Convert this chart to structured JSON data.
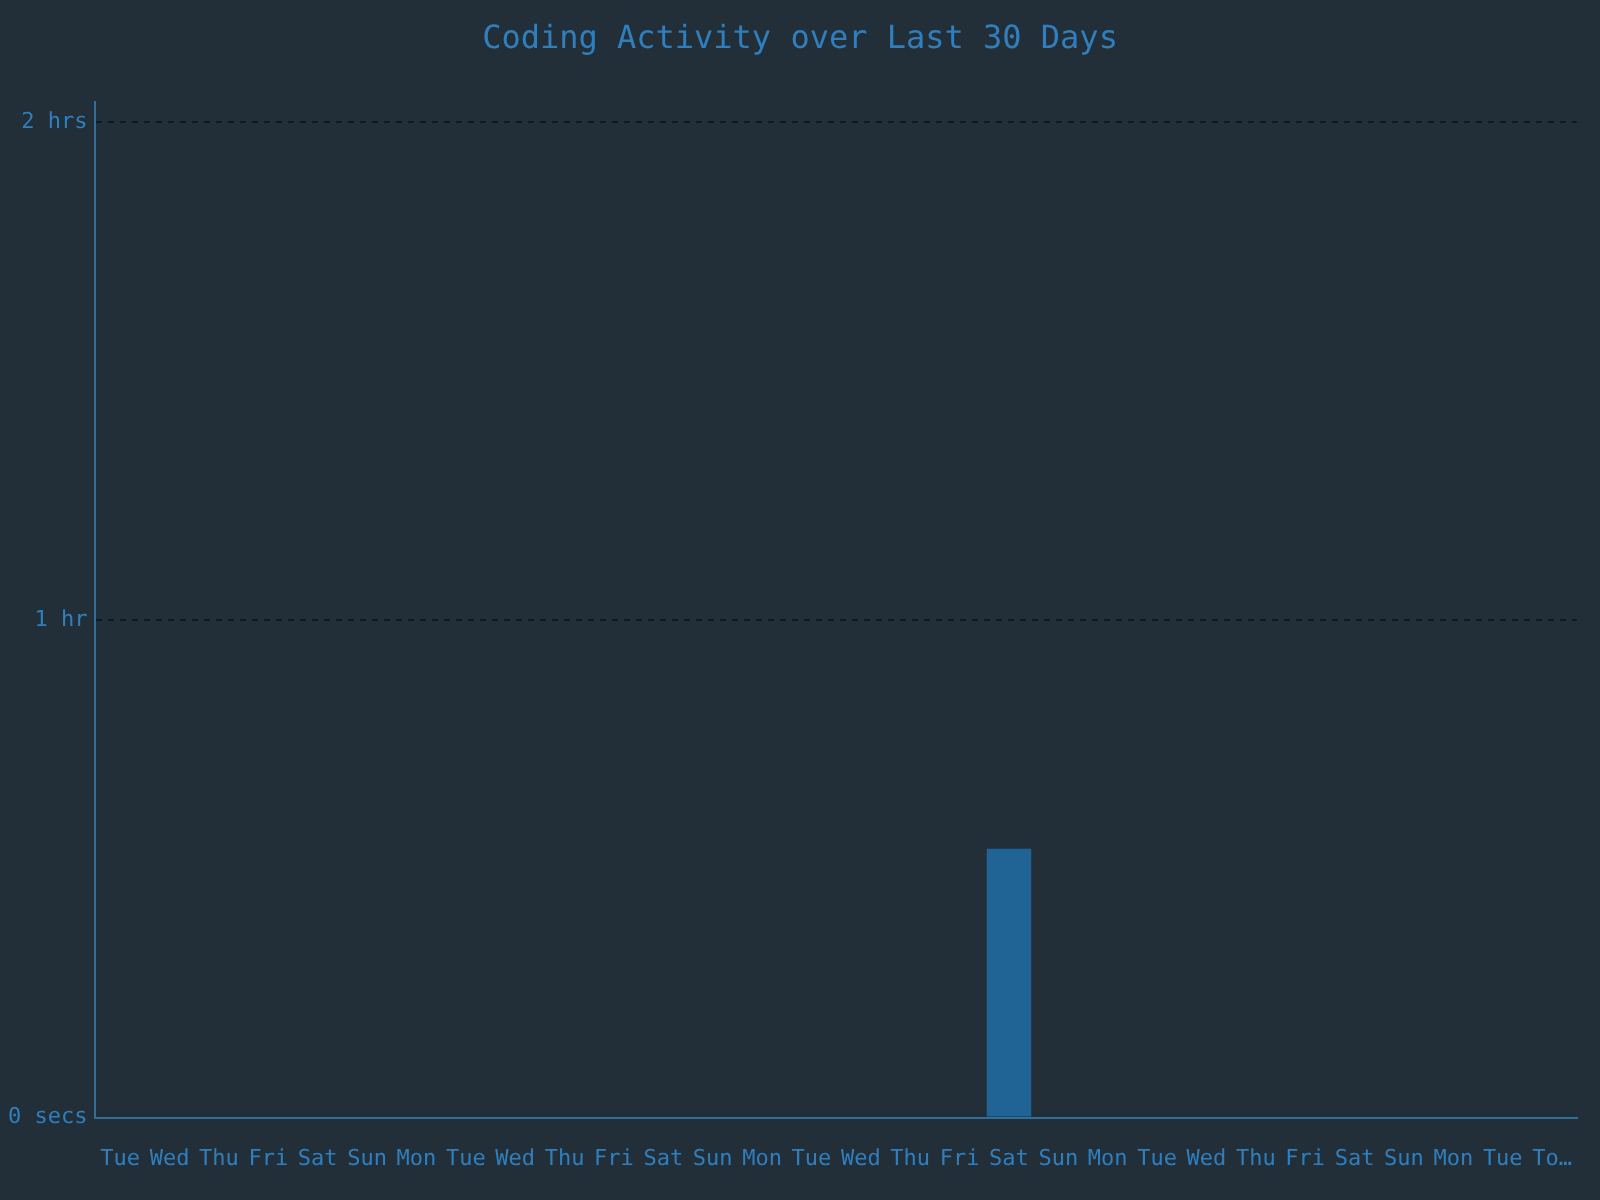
{
  "chart_data": {
    "type": "bar",
    "title": "Coding Activity over Last 30 Days",
    "categories": [
      "Tue",
      "Wed",
      "Thu",
      "Fri",
      "Sat",
      "Sun",
      "Mon",
      "Tue",
      "Wed",
      "Thu",
      "Fri",
      "Sat",
      "Sun",
      "Mon",
      "Tue",
      "Wed",
      "Thu",
      "Fri",
      "Sat",
      "Sun",
      "Mon",
      "Tue",
      "Wed",
      "Thu",
      "Fri",
      "Sat",
      "Sun",
      "Mon",
      "Tue",
      "To…"
    ],
    "values": [
      0,
      0,
      0,
      0,
      0,
      0,
      0,
      0,
      0,
      0,
      0,
      0,
      0,
      0,
      0,
      0,
      0,
      0,
      0.54,
      0,
      0,
      0,
      0,
      0,
      0,
      0,
      0,
      0,
      0,
      0
    ],
    "color": "#1f6494",
    "ylim": [
      0,
      2.04
    ],
    "yticks": [
      {
        "value": 0,
        "label": "0 secs"
      },
      {
        "value": 1,
        "label": "1 hr"
      },
      {
        "value": 2,
        "label": "2 hrs"
      }
    ],
    "grid": "y",
    "legend": false
  }
}
